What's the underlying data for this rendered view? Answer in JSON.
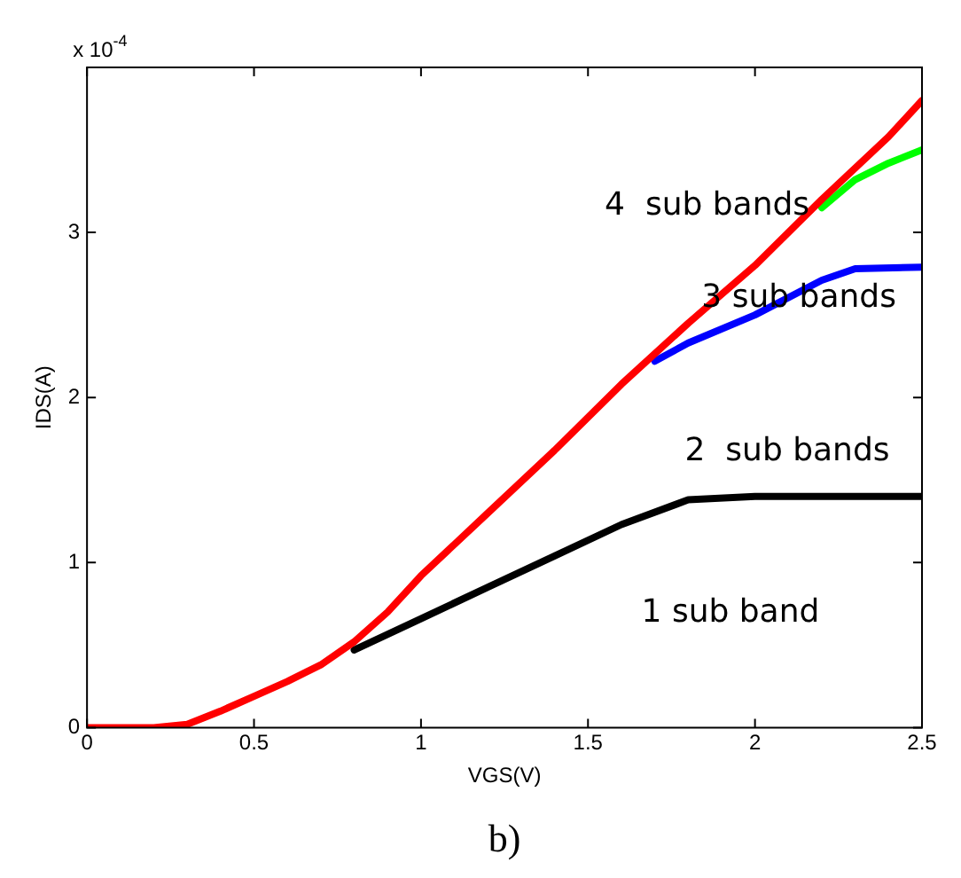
{
  "chart_data": {
    "type": "line",
    "xlabel": "VGS(V)",
    "ylabel": "IDS(A)",
    "xlim": [
      0,
      2.5
    ],
    "xticks": [
      0,
      0.5,
      1,
      1.5,
      2,
      2.5
    ],
    "ylim": [
      0,
      4
    ],
    "yticks": [
      0,
      1,
      2,
      3
    ],
    "grid": false,
    "legend": false,
    "marker": "none",
    "line_style": "solid",
    "series": [
      {
        "color": "#000000",
        "x": [
          0.8,
          1.0,
          1.2,
          1.4,
          1.6,
          1.8,
          2.0,
          2.5
        ],
        "values": [
          0.47,
          0.66,
          0.85,
          1.04,
          1.23,
          1.38,
          1.4,
          1.4
        ]
      },
      {
        "color": "#0000ff",
        "x": [
          1.7,
          1.8,
          2.0,
          2.2,
          2.3,
          2.5
        ],
        "values": [
          2.22,
          2.33,
          2.5,
          2.71,
          2.78,
          2.79
        ]
      },
      {
        "color": "#00ff00",
        "x": [
          2.2,
          2.3,
          2.4,
          2.5
        ],
        "values": [
          3.15,
          3.32,
          3.42,
          3.5
        ]
      },
      {
        "color": "#ff0000",
        "x": [
          0,
          0.2,
          0.3,
          0.4,
          0.5,
          0.6,
          0.7,
          0.8,
          0.9,
          1.0,
          1.2,
          1.4,
          1.6,
          1.8,
          2.0,
          2.2,
          2.4,
          2.5
        ],
        "values": [
          0,
          0,
          0.02,
          0.1,
          0.19,
          0.28,
          0.38,
          0.52,
          0.7,
          0.92,
          1.3,
          1.68,
          2.08,
          2.45,
          2.8,
          3.2,
          3.58,
          3.8
        ]
      }
    ],
    "annotations": [
      "x 10$^{-4}$",
      "4  sub bands",
      "3 sub bands",
      "2  sub bands",
      "1 sub band",
      "b)"
    ]
  }
}
